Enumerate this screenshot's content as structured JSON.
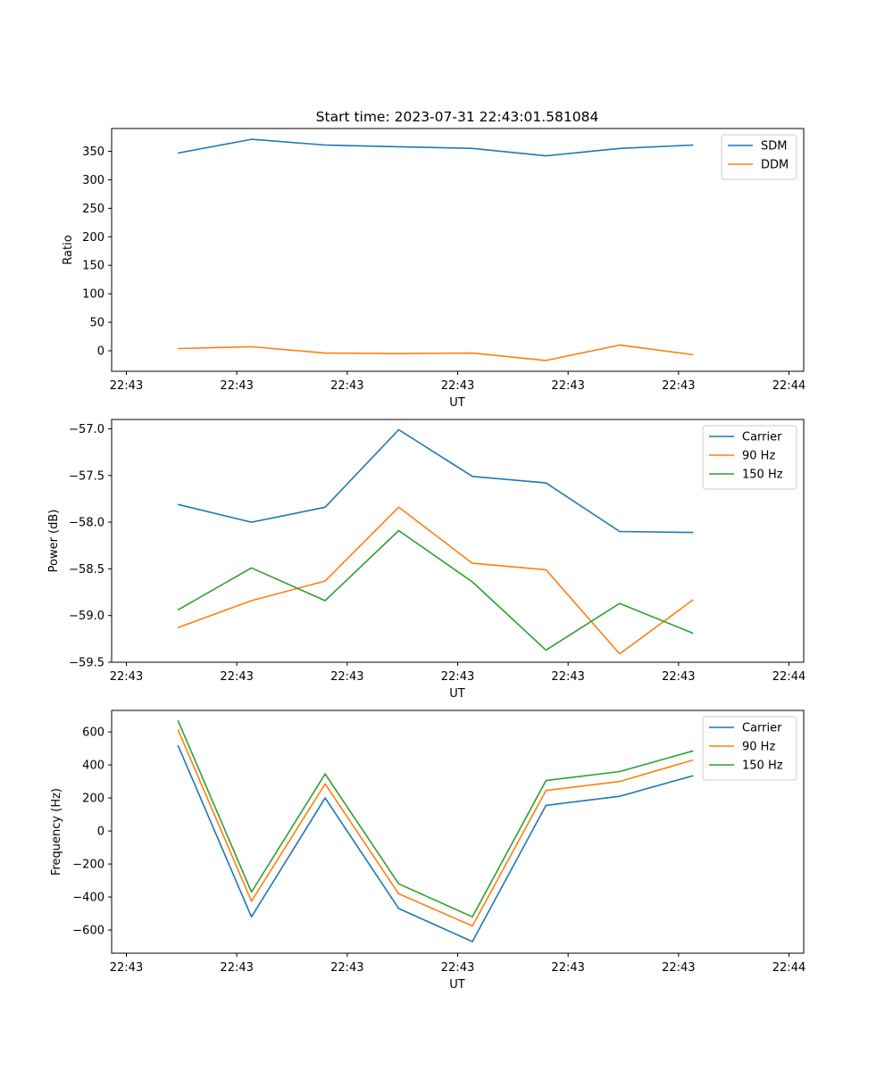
{
  "chart_data": [
    {
      "type": "line",
      "title": "Start time: 2023-07-31 22:43:01.581084",
      "xlabel": "UT",
      "ylabel": "Ratio",
      "xlim": [
        0,
        9.4
      ],
      "ylim": [
        -36,
        390
      ],
      "x_ticks": [
        0.2,
        1.7,
        3.2,
        4.7,
        6.2,
        7.7,
        9.2
      ],
      "x_tick_labels": [
        "22:43",
        "22:43",
        "22:43",
        "22:43",
        "22:43",
        "22:43",
        "22:44"
      ],
      "y_ticks": [
        0,
        50,
        100,
        150,
        200,
        250,
        300,
        350
      ],
      "y_tick_labels": [
        "0",
        "50",
        "100",
        "150",
        "200",
        "250",
        "300",
        "350"
      ],
      "legend_position": "top-right",
      "x": [
        0.9,
        1.9,
        2.9,
        3.9,
        4.9,
        5.9,
        6.9,
        7.9
      ],
      "series": [
        {
          "name": "SDM",
          "color": "#1f77b4",
          "values": [
            347,
            371,
            361,
            358,
            355,
            342,
            355,
            361
          ]
        },
        {
          "name": "DDM",
          "color": "#ff7f0e",
          "values": [
            4,
            7,
            -4,
            -5,
            -4,
            -17,
            10,
            -7
          ]
        }
      ]
    },
    {
      "type": "line",
      "title": "",
      "xlabel": "UT",
      "ylabel": "Power (dB)",
      "xlim": [
        0,
        9.4
      ],
      "ylim": [
        -59.5,
        -56.9
      ],
      "x_ticks": [
        0.2,
        1.7,
        3.2,
        4.7,
        6.2,
        7.7,
        9.2
      ],
      "x_tick_labels": [
        "22:43",
        "22:43",
        "22:43",
        "22:43",
        "22:43",
        "22:43",
        "22:44"
      ],
      "y_ticks": [
        -59.5,
        -59.0,
        -58.5,
        -58.0,
        -57.5,
        -57.0
      ],
      "y_tick_labels": [
        "−59.5",
        "−59.0",
        "−58.5",
        "−58.0",
        "−57.5",
        "−57.0"
      ],
      "legend_position": "top-right",
      "x": [
        0.9,
        1.9,
        2.9,
        3.9,
        4.9,
        5.9,
        6.9,
        7.9
      ],
      "series": [
        {
          "name": "Carrier",
          "color": "#1f77b4",
          "values": [
            -57.81,
            -58.0,
            -57.84,
            -57.01,
            -57.51,
            -57.58,
            -58.1,
            -58.11
          ]
        },
        {
          "name": "90 Hz",
          "color": "#ff7f0e",
          "values": [
            -59.13,
            -58.84,
            -58.63,
            -57.84,
            -58.44,
            -58.51,
            -59.41,
            -58.83
          ]
        },
        {
          "name": "150 Hz",
          "color": "#2ca02c",
          "values": [
            -58.94,
            -58.49,
            -58.84,
            -58.09,
            -58.64,
            -59.37,
            -58.87,
            -59.19
          ]
        }
      ]
    },
    {
      "type": "line",
      "title": "",
      "xlabel": "UT",
      "ylabel": "Frequency (Hz)",
      "xlim": [
        0,
        9.4
      ],
      "ylim": [
        -740,
        730
      ],
      "x_ticks": [
        0.2,
        1.7,
        3.2,
        4.7,
        6.2,
        7.7,
        9.2
      ],
      "x_tick_labels": [
        "22:43",
        "22:43",
        "22:43",
        "22:43",
        "22:43",
        "22:43",
        "22:44"
      ],
      "y_ticks": [
        -600,
        -400,
        -200,
        0,
        200,
        400,
        600
      ],
      "y_tick_labels": [
        "−600",
        "−400",
        "−200",
        "0",
        "200",
        "400",
        "600"
      ],
      "legend_position": "top-right",
      "x": [
        0.9,
        1.9,
        2.9,
        3.9,
        4.9,
        5.9,
        6.9,
        7.9
      ],
      "series": [
        {
          "name": "Carrier",
          "color": "#1f77b4",
          "values": [
            520,
            -520,
            200,
            -470,
            -670,
            155,
            210,
            335
          ]
        },
        {
          "name": "90 Hz",
          "color": "#ff7f0e",
          "values": [
            615,
            -425,
            285,
            -380,
            -575,
            245,
            300,
            430
          ]
        },
        {
          "name": "150 Hz",
          "color": "#2ca02c",
          "values": [
            670,
            -370,
            345,
            -320,
            -520,
            305,
            360,
            485
          ]
        }
      ]
    }
  ]
}
